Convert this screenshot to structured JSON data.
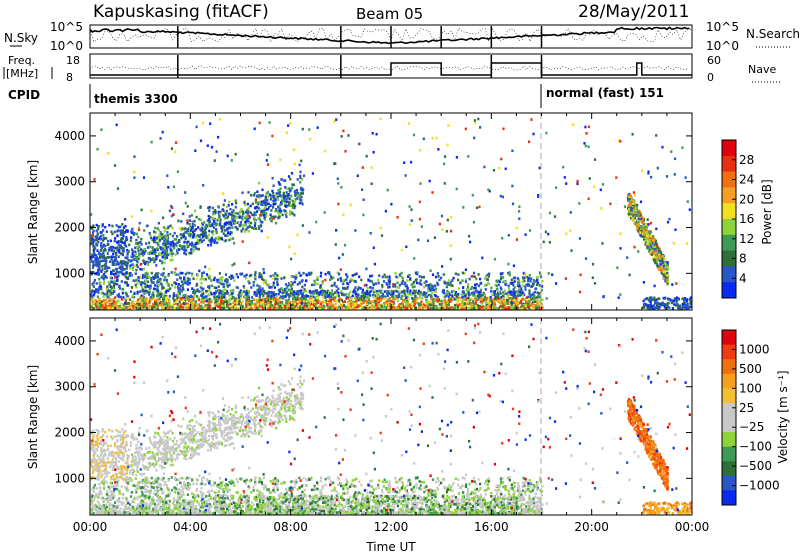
{
  "header": {
    "station": "Kapuskasing (fitACF)",
    "beam": "Beam 05",
    "date": "28/May/2011"
  },
  "top_panels": {
    "nsky_label": "N.Sky",
    "nsky_ticks": [
      "10^5",
      "10^0"
    ],
    "nsearch_label": "N.Search",
    "nsearch_ticks": [
      "10^5",
      "10^0"
    ],
    "freq_label_1": "Freq.",
    "freq_label_2": "[MHz]",
    "freq_ticks": [
      "18",
      "8"
    ],
    "nave_label": "Nave",
    "nave_ticks": [
      "60",
      "0"
    ],
    "cpid_label": "CPID",
    "cpid_entries": [
      {
        "start_hour": 0,
        "text": "themis 3300"
      },
      {
        "start_hour": 18,
        "text": "normal (fast) 151"
      }
    ]
  },
  "colors": {
    "power": [
      "#0a2af0",
      "#2855c8",
      "#2f6f3a",
      "#3e9a54",
      "#8fd33a",
      "#f0e020",
      "#f5a020",
      "#f07010",
      "#e83010",
      "#e00010"
    ],
    "velocity": [
      "#e00010",
      "#f03a10",
      "#f07010",
      "#f5a020",
      "#f5c030",
      "#c8c8c8",
      "#c8c8c8",
      "#8fd33a",
      "#3e9a54",
      "#2f6f3a",
      "#2855c8",
      "#0a2af0"
    ],
    "dash": "#aaaaaa"
  },
  "chart_data": [
    {
      "type": "heatmap",
      "title": "Power",
      "ylabel": "Slant Range [km]",
      "yticks": [
        "1000",
        "2000",
        "3000",
        "4000"
      ],
      "ylim": [
        200,
        4500
      ],
      "xlim": [
        0,
        24
      ],
      "colorbar_label": "Power [dB]",
      "colorbar_ticks": [
        "4",
        "8",
        "12",
        "16",
        "20",
        "24",
        "28"
      ]
    },
    {
      "type": "heatmap",
      "title": "Velocity",
      "ylabel": "Slant Range [km]",
      "yticks": [
        "1000",
        "2000",
        "3000",
        "4000"
      ],
      "ylim": [
        200,
        4500
      ],
      "xlim": [
        0,
        24
      ],
      "xlabel": "Time UT",
      "xticks": [
        "00:00",
        "04:00",
        "08:00",
        "12:00",
        "16:00",
        "20:00",
        "00:00"
      ],
      "colorbar_label": "Velocity [m s⁻¹]",
      "colorbar_ticks": [
        "1000",
        "500",
        "100",
        "25",
        "−25",
        "−100",
        "−500",
        "−1000"
      ]
    }
  ]
}
